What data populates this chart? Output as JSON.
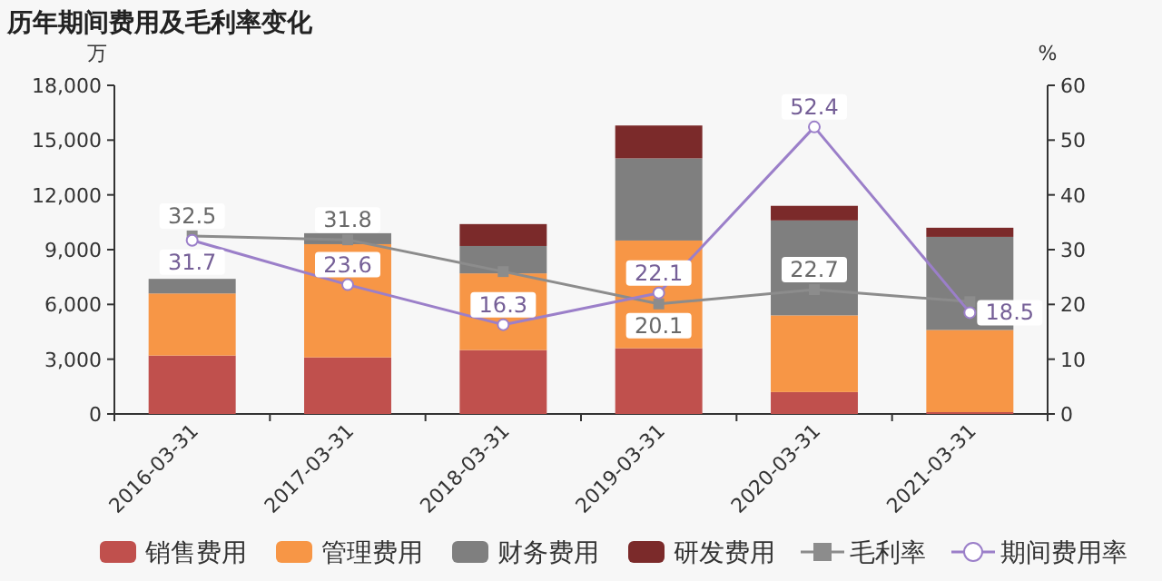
{
  "chart_data": {
    "type": "bar",
    "title": "历年期间费用及毛利率变化",
    "ylabel": "万",
    "y2label": "%",
    "stacked": true,
    "categories": [
      "2016-03-31",
      "2017-03-31",
      "2018-03-31",
      "2019-03-31",
      "2020-03-31",
      "2021-03-31"
    ],
    "series": [
      {
        "name": "销售费用",
        "color": "#c0504d",
        "values": [
          3200,
          3100,
          3500,
          3600,
          1200,
          100
        ]
      },
      {
        "name": "管理费用",
        "color": "#f79646",
        "values": [
          3400,
          6200,
          4200,
          5900,
          4200,
          4500
        ]
      },
      {
        "name": "财务费用",
        "color": "#7f7f7f",
        "values": [
          800,
          600,
          1500,
          4500,
          5200,
          5100
        ]
      },
      {
        "name": "研发费用",
        "color": "#7b2a2a",
        "values": [
          0,
          0,
          1200,
          1800,
          800,
          500
        ]
      },
      {
        "name": "毛利率",
        "type": "line",
        "axis": "y2",
        "marker": "square",
        "color": "#8c8c8c",
        "values": [
          32.5,
          31.8,
          26,
          20.1,
          22.7,
          20.5
        ],
        "value_labels": [
          "32.5",
          "31.8",
          null,
          "20.1",
          "22.7",
          null
        ]
      },
      {
        "name": "期间费用率",
        "type": "line",
        "axis": "y2",
        "marker": "circle",
        "color": "#9b7fc9",
        "values": [
          31.7,
          23.6,
          16.3,
          22.1,
          52.4,
          18.5
        ],
        "value_labels": [
          "31.7",
          "23.6",
          "16.3",
          "22.1",
          "52.4",
          "18.5"
        ]
      }
    ],
    "ylim": [
      0,
      18000
    ],
    "yticks": [
      {
        "value": 0,
        "label": "0"
      },
      {
        "value": 3000,
        "label": "3,000"
      },
      {
        "value": 6000,
        "label": "6,000"
      },
      {
        "value": 9000,
        "label": "9,000"
      },
      {
        "value": 12000,
        "label": "12,000"
      },
      {
        "value": 15000,
        "label": "15,000"
      },
      {
        "value": 18000,
        "label": "18,000"
      }
    ],
    "y2lim": [
      0,
      60
    ],
    "y2ticks": [
      0,
      10,
      20,
      30,
      40,
      50,
      60
    ],
    "legend": "bottom",
    "grid": false
  }
}
